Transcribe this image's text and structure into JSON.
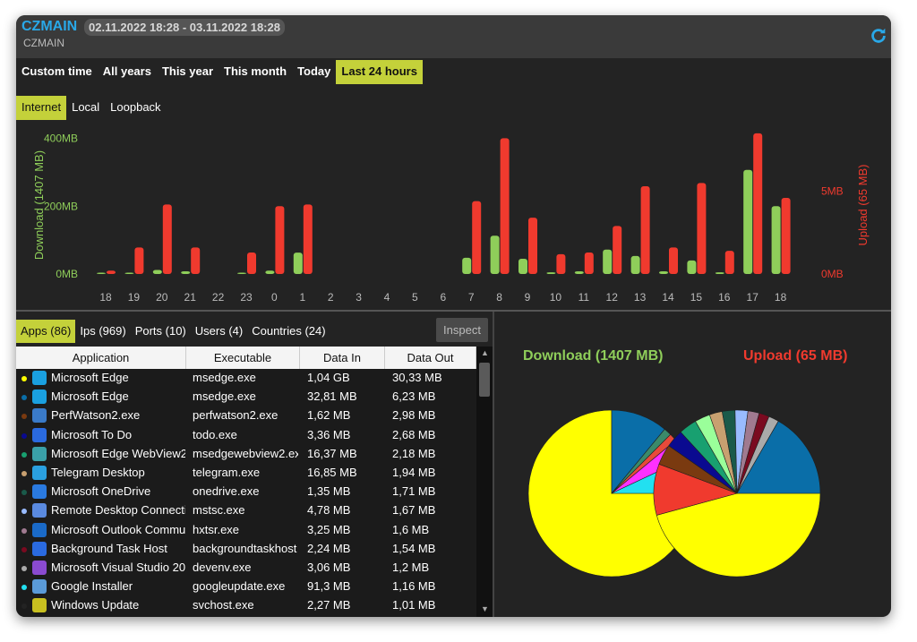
{
  "header": {
    "app_title": "CZMAIN",
    "date_range": "02.11.2022 18:28 - 03.11.2022 18:28",
    "host": "CZMAIN"
  },
  "period_tabs": [
    "Custom time",
    "All years",
    "This year",
    "This month",
    "Today",
    "Last 24 hours"
  ],
  "period_active": "Last 24 hours",
  "scope_tabs": [
    "Internet",
    "Local",
    "Loopback"
  ],
  "scope_active": "Internet",
  "data_tabs": [
    "Apps (86)",
    "Ips (969)",
    "Ports (10)",
    "Users (4)",
    "Countries (24)"
  ],
  "inspect_label": "Inspect",
  "colors": {
    "download": "#8fce5a",
    "upload": "#f03a2e",
    "accent": "#c4d13a",
    "title": "#29a8e8"
  },
  "chart_data": {
    "type": "bar",
    "categories": [
      "18",
      "19",
      "20",
      "21",
      "22",
      "23",
      "0",
      "1",
      "2",
      "3",
      "4",
      "5",
      "6",
      "7",
      "8",
      "9",
      "10",
      "11",
      "12",
      "13",
      "14",
      "15",
      "16",
      "17",
      "18"
    ],
    "series": [
      {
        "name": "Download (1407 MB)",
        "axis": "left",
        "unit": "MB",
        "values": [
          3,
          4,
          12,
          8,
          0,
          2,
          10,
          63,
          0,
          0,
          0,
          0,
          0,
          48,
          113,
          45,
          5,
          8,
          72,
          53,
          8,
          40,
          5,
          307,
          200
        ]
      },
      {
        "name": "Upload (65 MB)",
        "axis": "right",
        "unit": "MB",
        "values": [
          0.2,
          1.6,
          4.2,
          1.6,
          0,
          1.3,
          4.1,
          4.2,
          0,
          0,
          0,
          0,
          0,
          4.4,
          8.2,
          3.4,
          1.2,
          1.3,
          2.9,
          5.3,
          1.6,
          5.5,
          1.4,
          8.5,
          4.6
        ]
      }
    ],
    "left_axis": {
      "label": "Download (1407 MB)",
      "ticks": [
        "0MB",
        "200MB",
        "400MB"
      ],
      "ylim": [
        0,
        420
      ]
    },
    "right_axis": {
      "label": "Upload (65 MB)",
      "ticks": [
        "0MB",
        "5MB"
      ],
      "ylim": [
        0,
        8.6
      ]
    },
    "pies": [
      {
        "title": "Download (1407 MB)",
        "slices": [
          {
            "value": 75,
            "color": "#ffff00"
          },
          {
            "value": 11,
            "color": "#0a6ea8"
          },
          {
            "value": 1.5,
            "color": "#3b8a6a"
          },
          {
            "value": 1.5,
            "color": "#e84a3a"
          },
          {
            "value": 4,
            "color": "#ff30ff"
          },
          {
            "value": 7,
            "color": "#22e0f0"
          }
        ]
      },
      {
        "title": "Upload (65 MB)",
        "slices": [
          {
            "value": 46,
            "color": "#ffff00"
          },
          {
            "value": 10,
            "color": "#f03a2e"
          },
          {
            "value": 4,
            "color": "#7a3a10"
          },
          {
            "value": 3.5,
            "color": "#0a0a90"
          },
          {
            "value": 3.5,
            "color": "#18a070"
          },
          {
            "value": 3,
            "color": "#9aff9a"
          },
          {
            "value": 2.5,
            "color": "#c8a070"
          },
          {
            "value": 2.5,
            "color": "#1a5a4a"
          },
          {
            "value": 2.5,
            "color": "#99bbff"
          },
          {
            "value": 2.2,
            "color": "#a07a90"
          },
          {
            "value": 2,
            "color": "#7a0a20"
          },
          {
            "value": 2,
            "color": "#aaaaaa"
          },
          {
            "value": 16.8,
            "color": "#0a6ea8"
          }
        ]
      }
    ]
  },
  "table": {
    "columns": [
      "Application",
      "Executable",
      "Data In",
      "Data Out"
    ],
    "rows": [
      {
        "app": "Microsoft Edge",
        "exe": "msedge.exe",
        "in": "1,04 GB",
        "out": "30,33 MB",
        "dot": "#ffff00",
        "icon": "edge-icon",
        "icolor": "#1aa0e0"
      },
      {
        "app": "Microsoft Edge",
        "exe": "msedge.exe",
        "in": "32,81 MB",
        "out": "6,23 MB",
        "dot": "#0a6ea8",
        "icon": "edge-icon",
        "icolor": "#1aa0e0"
      },
      {
        "app": "PerfWatson2.exe",
        "exe": "perfwatson2.exe",
        "in": "1,62 MB",
        "out": "2,98 MB",
        "dot": "#7a3a10",
        "icon": "app-window-icon",
        "icolor": "#3a7ac8"
      },
      {
        "app": "Microsoft To Do",
        "exe": "todo.exe",
        "in": "3,36 MB",
        "out": "2,68 MB",
        "dot": "#0a0a90",
        "icon": "checkmark-icon",
        "icolor": "#2a6ae0"
      },
      {
        "app": "Microsoft Edge WebView2",
        "exe": "msedgewebview2.ex",
        "in": "16,37 MB",
        "out": "2,18 MB",
        "dot": "#18a070",
        "icon": "webview-icon",
        "icolor": "#3aa0a8"
      },
      {
        "app": "Telegram Desktop",
        "exe": "telegram.exe",
        "in": "16,85 MB",
        "out": "1,94 MB",
        "dot": "#c8a070",
        "icon": "telegram-icon",
        "icolor": "#2aa0e0"
      },
      {
        "app": "Microsoft OneDrive",
        "exe": "onedrive.exe",
        "in": "1,35 MB",
        "out": "1,71 MB",
        "dot": "#1a5a4a",
        "icon": "cloud-icon",
        "icolor": "#2a7ae0"
      },
      {
        "app": "Remote Desktop Connecti",
        "exe": "mstsc.exe",
        "in": "4,78 MB",
        "out": "1,67 MB",
        "dot": "#99bbff",
        "icon": "remote-desktop-icon",
        "icolor": "#5a8ae0"
      },
      {
        "app": "Microsoft Outlook Commu",
        "exe": "hxtsr.exe",
        "in": "3,25 MB",
        "out": "1,6 MB",
        "dot": "#a07a90",
        "icon": "mail-icon",
        "icolor": "#1a6ac8"
      },
      {
        "app": "Background Task Host",
        "exe": "backgroundtaskhost",
        "in": "2,24 MB",
        "out": "1,54 MB",
        "dot": "#7a0a20",
        "icon": "checkmark-icon",
        "icolor": "#2a6ae0"
      },
      {
        "app": "Microsoft Visual Studio 20",
        "exe": "devenv.exe",
        "in": "3,06 MB",
        "out": "1,2 MB",
        "dot": "#aaaaaa",
        "icon": "visual-studio-icon",
        "icolor": "#8a4ad0"
      },
      {
        "app": "Google Installer",
        "exe": "googleupdate.exe",
        "in": "91,3 MB",
        "out": "1,16 MB",
        "dot": "#22e0f0",
        "icon": "installer-icon",
        "icolor": "#5a9ad8"
      },
      {
        "app": "Windows Update",
        "exe": "svchost.exe",
        "in": "2,27 MB",
        "out": "1,01 MB",
        "dot": "#232323",
        "icon": "gear-icon",
        "icolor": "#c8c020"
      }
    ]
  }
}
